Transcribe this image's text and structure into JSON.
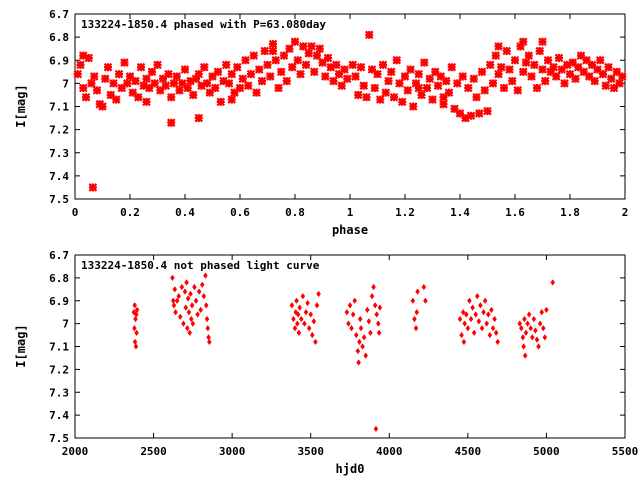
{
  "chart_data": [
    {
      "type": "scatter",
      "title": "133224-1850.4 phased with P=63.080day",
      "xlabel": "phase",
      "ylabel": "I[mag]",
      "xlim": [
        0,
        2
      ],
      "ylim": [
        7.5,
        6.7
      ],
      "y_inverted": true,
      "x_ticks": [
        "0",
        "0.2",
        "0.4",
        "0.6",
        "0.8",
        "1",
        "1.2",
        "1.4",
        "1.6",
        "1.8",
        "2"
      ],
      "y_ticks": [
        "6.7",
        "6.8",
        "6.9",
        "7",
        "7.1",
        "7.2",
        "7.3",
        "7.4",
        "7.5"
      ],
      "grid": false,
      "marker_color": "#ff0000",
      "points": [
        [
          0.01,
          6.96
        ],
        [
          0.02,
          6.92
        ],
        [
          0.03,
          7.02
        ],
        [
          0.04,
          7.06
        ],
        [
          0.05,
          6.89
        ],
        [
          0.06,
          7.0
        ],
        [
          0.07,
          6.97
        ],
        [
          0.08,
          7.03
        ],
        [
          0.09,
          7.09
        ],
        [
          0.1,
          7.1
        ],
        [
          0.11,
          6.98
        ],
        [
          0.12,
          6.93
        ],
        [
          0.13,
          7.05
        ],
        [
          0.14,
          7.0
        ],
        [
          0.15,
          7.07
        ],
        [
          0.16,
          6.96
        ],
        [
          0.17,
          7.02
        ],
        [
          0.18,
          6.91
        ],
        [
          0.19,
          7.0
        ],
        [
          0.2,
          6.97
        ],
        [
          0.21,
          7.04
        ],
        [
          0.22,
          6.99
        ],
        [
          0.23,
          7.06
        ],
        [
          0.24,
          6.93
        ],
        [
          0.25,
          7.01
        ],
        [
          0.26,
          6.98
        ],
        [
          0.27,
          7.02
        ],
        [
          0.28,
          6.95
        ],
        [
          0.29,
          7.0
        ],
        [
          0.3,
          6.92
        ],
        [
          0.31,
          7.03
        ],
        [
          0.32,
          6.98
        ],
        [
          0.33,
          7.01
        ],
        [
          0.34,
          6.96
        ],
        [
          0.35,
          7.06
        ],
        [
          0.36,
          7.0
        ],
        [
          0.37,
          6.97
        ],
        [
          0.38,
          7.03
        ],
        [
          0.39,
          7.0
        ],
        [
          0.4,
          6.94
        ],
        [
          0.41,
          7.02
        ],
        [
          0.42,
          6.99
        ],
        [
          0.43,
          7.05
        ],
        [
          0.44,
          6.98
        ],
        [
          0.45,
          6.96
        ],
        [
          0.46,
          7.01
        ],
        [
          0.47,
          6.93
        ],
        [
          0.48,
          7.0
        ],
        [
          0.49,
          7.04
        ],
        [
          0.5,
          6.97
        ],
        [
          0.51,
          7.02
        ],
        [
          0.52,
          6.95
        ],
        [
          0.53,
          7.08
        ],
        [
          0.54,
          6.99
        ],
        [
          0.55,
          6.92
        ],
        [
          0.56,
          7.0
        ],
        [
          0.57,
          6.96
        ],
        [
          0.58,
          7.04
        ],
        [
          0.59,
          6.93
        ],
        [
          0.6,
          7.02
        ],
        [
          0.61,
          6.98
        ],
        [
          0.62,
          6.9
        ],
        [
          0.63,
          7.01
        ],
        [
          0.64,
          6.96
        ],
        [
          0.65,
          6.88
        ],
        [
          0.66,
          7.04
        ],
        [
          0.67,
          6.94
        ],
        [
          0.68,
          6.99
        ],
        [
          0.69,
          6.86
        ],
        [
          0.7,
          6.92
        ],
        [
          0.71,
          6.97
        ],
        [
          0.72,
          6.83
        ],
        [
          0.73,
          6.9
        ],
        [
          0.74,
          7.02
        ],
        [
          0.75,
          6.95
        ],
        [
          0.76,
          6.88
        ],
        [
          0.77,
          6.99
        ],
        [
          0.78,
          6.85
        ],
        [
          0.79,
          6.93
        ],
        [
          0.8,
          6.82
        ],
        [
          0.81,
          6.9
        ],
        [
          0.82,
          6.96
        ],
        [
          0.83,
          6.84
        ],
        [
          0.84,
          6.92
        ],
        [
          0.85,
          6.87
        ],
        [
          0.86,
          6.84
        ],
        [
          0.87,
          6.95
        ],
        [
          0.88,
          6.88
        ],
        [
          0.89,
          6.85
        ],
        [
          0.9,
          6.91
        ],
        [
          0.91,
          6.97
        ],
        [
          0.92,
          6.89
        ],
        [
          0.93,
          6.93
        ],
        [
          0.94,
          6.99
        ],
        [
          0.95,
          6.92
        ],
        [
          0.96,
          6.96
        ],
        [
          0.97,
          7.01
        ],
        [
          0.98,
          6.94
        ],
        [
          0.99,
          6.98
        ],
        [
          1.01,
          6.92
        ],
        [
          1.02,
          6.97
        ],
        [
          1.03,
          7.05
        ],
        [
          1.04,
          6.93
        ],
        [
          1.05,
          7.01
        ],
        [
          1.06,
          7.06
        ],
        [
          1.07,
          6.79
        ],
        [
          1.08,
          6.94
        ],
        [
          1.09,
          7.02
        ],
        [
          1.1,
          6.96
        ],
        [
          1.11,
          7.07
        ],
        [
          1.12,
          6.92
        ],
        [
          1.13,
          7.04
        ],
        [
          1.14,
          6.99
        ],
        [
          1.15,
          6.95
        ],
        [
          1.16,
          7.06
        ],
        [
          1.17,
          6.9
        ],
        [
          1.18,
          7.0
        ],
        [
          1.19,
          7.08
        ],
        [
          1.2,
          6.97
        ],
        [
          1.21,
          7.03
        ],
        [
          1.22,
          6.94
        ],
        [
          1.23,
          7.1
        ],
        [
          1.24,
          7.0
        ],
        [
          1.25,
          6.96
        ],
        [
          1.26,
          7.05
        ],
        [
          1.27,
          6.91
        ],
        [
          1.28,
          7.02
        ],
        [
          1.29,
          6.98
        ],
        [
          1.3,
          7.07
        ],
        [
          1.31,
          6.95
        ],
        [
          1.32,
          7.01
        ],
        [
          1.33,
          6.97
        ],
        [
          1.34,
          7.09
        ],
        [
          1.35,
          6.99
        ],
        [
          1.36,
          7.04
        ],
        [
          1.37,
          6.93
        ],
        [
          1.38,
          7.11
        ],
        [
          1.39,
          7.0
        ],
        [
          1.4,
          7.13
        ],
        [
          1.41,
          6.97
        ],
        [
          1.42,
          7.15
        ],
        [
          1.43,
          7.02
        ],
        [
          1.44,
          7.14
        ],
        [
          1.45,
          6.98
        ],
        [
          1.46,
          7.06
        ],
        [
          1.47,
          7.13
        ],
        [
          1.48,
          6.95
        ],
        [
          1.49,
          7.03
        ],
        [
          1.5,
          7.12
        ],
        [
          1.51,
          6.92
        ],
        [
          1.52,
          7.0
        ],
        [
          1.53,
          6.88
        ],
        [
          1.54,
          6.96
        ],
        [
          1.55,
          6.93
        ],
        [
          1.56,
          7.02
        ],
        [
          1.57,
          6.86
        ],
        [
          1.58,
          6.94
        ],
        [
          1.59,
          6.99
        ],
        [
          1.6,
          6.9
        ],
        [
          1.61,
          7.03
        ],
        [
          1.62,
          6.84
        ],
        [
          1.63,
          6.95
        ],
        [
          1.64,
          6.91
        ],
        [
          1.65,
          6.88
        ],
        [
          1.66,
          6.97
        ],
        [
          1.67,
          6.92
        ],
        [
          1.68,
          7.02
        ],
        [
          1.69,
          6.86
        ],
        [
          1.7,
          6.94
        ],
        [
          1.71,
          6.99
        ],
        [
          1.72,
          6.9
        ],
        [
          1.73,
          6.95
        ],
        [
          1.74,
          6.93
        ],
        [
          1.75,
          6.97
        ],
        [
          1.76,
          6.89
        ],
        [
          1.77,
          6.94
        ],
        [
          1.78,
          7.0
        ],
        [
          1.79,
          6.92
        ],
        [
          1.8,
          6.96
        ],
        [
          1.81,
          6.91
        ],
        [
          1.82,
          6.98
        ],
        [
          1.83,
          6.93
        ],
        [
          1.84,
          6.88
        ],
        [
          1.85,
          6.95
        ],
        [
          1.86,
          6.9
        ],
        [
          1.87,
          6.97
        ],
        [
          1.88,
          6.92
        ],
        [
          1.89,
          6.99
        ],
        [
          1.9,
          6.94
        ],
        [
          1.91,
          6.9
        ],
        [
          1.92,
          6.96
        ],
        [
          1.93,
          7.01
        ],
        [
          1.94,
          6.93
        ],
        [
          1.95,
          6.98
        ],
        [
          1.96,
          7.02
        ],
        [
          1.97,
          6.95
        ],
        [
          1.98,
          7.0
        ],
        [
          1.99,
          6.97
        ],
        [
          0.065,
          7.45
        ],
        [
          0.35,
          7.17
        ],
        [
          0.45,
          7.15
        ],
        [
          0.03,
          6.88
        ],
        [
          0.72,
          6.86
        ],
        [
          1.63,
          6.82
        ],
        [
          1.7,
          6.82
        ],
        [
          1.54,
          6.84
        ],
        [
          1.34,
          7.06
        ],
        [
          0.26,
          7.08
        ],
        [
          1.25,
          7.02
        ],
        [
          0.57,
          7.07
        ]
      ]
    },
    {
      "type": "scatter",
      "title": "133224-1850.4 not phased light curve",
      "xlabel": "hjd0",
      "ylabel": "I[mag]",
      "xlim": [
        2000,
        5500
      ],
      "ylim": [
        7.5,
        6.7
      ],
      "y_inverted": true,
      "x_ticks": [
        "2000",
        "2500",
        "3000",
        "3500",
        "4000",
        "4500",
        "5000",
        "5500"
      ],
      "y_ticks": [
        "6.7",
        "6.8",
        "6.9",
        "7",
        "7.1",
        "7.2",
        "7.3",
        "7.4",
        "7.5"
      ],
      "grid": false,
      "marker_color": "#ff0000",
      "points": [
        [
          2375,
          6.95
        ],
        [
          2378,
          7.02
        ],
        [
          2380,
          6.92
        ],
        [
          2382,
          7.08
        ],
        [
          2385,
          6.98
        ],
        [
          2388,
          7.1
        ],
        [
          2390,
          6.96
        ],
        [
          2392,
          7.04
        ],
        [
          2395,
          6.94
        ],
        [
          2620,
          6.8
        ],
        [
          2625,
          6.9
        ],
        [
          2630,
          6.92
        ],
        [
          2635,
          6.85
        ],
        [
          2640,
          6.95
        ],
        [
          2650,
          6.9
        ],
        [
          2660,
          6.88
        ],
        [
          2670,
          6.97
        ],
        [
          2680,
          6.84
        ],
        [
          2690,
          7.0
        ],
        [
          2700,
          6.86
        ],
        [
          2705,
          6.93
        ],
        [
          2710,
          6.82
        ],
        [
          2715,
          7.02
        ],
        [
          2720,
          6.89
        ],
        [
          2725,
          6.95
        ],
        [
          2730,
          7.04
        ],
        [
          2735,
          6.87
        ],
        [
          2740,
          6.98
        ],
        [
          2745,
          6.92
        ],
        [
          2750,
          7.0
        ],
        [
          2760,
          6.84
        ],
        [
          2770,
          6.9
        ],
        [
          2780,
          6.96
        ],
        [
          2790,
          6.86
        ],
        [
          2800,
          6.94
        ],
        [
          2810,
          6.83
        ],
        [
          2820,
          6.88
        ],
        [
          2830,
          6.79
        ],
        [
          2835,
          6.92
        ],
        [
          2840,
          6.98
        ],
        [
          2845,
          7.02
        ],
        [
          2850,
          7.06
        ],
        [
          2855,
          7.08
        ],
        [
          3380,
          6.92
        ],
        [
          3390,
          6.98
        ],
        [
          3400,
          7.02
        ],
        [
          3405,
          6.95
        ],
        [
          3410,
          6.9
        ],
        [
          3415,
          7.0
        ],
        [
          3420,
          6.96
        ],
        [
          3425,
          7.04
        ],
        [
          3430,
          6.93
        ],
        [
          3440,
          6.98
        ],
        [
          3450,
          6.88
        ],
        [
          3460,
          7.0
        ],
        [
          3470,
          6.95
        ],
        [
          3480,
          6.91
        ],
        [
          3490,
          7.02
        ],
        [
          3500,
          6.96
        ],
        [
          3510,
          7.05
        ],
        [
          3520,
          6.99
        ],
        [
          3530,
          7.08
        ],
        [
          3540,
          6.92
        ],
        [
          3550,
          6.87
        ],
        [
          3730,
          6.95
        ],
        [
          3740,
          7.0
        ],
        [
          3750,
          6.92
        ],
        [
          3760,
          7.02
        ],
        [
          3770,
          6.96
        ],
        [
          3780,
          6.9
        ],
        [
          3790,
          7.05
        ],
        [
          3800,
          7.12
        ],
        [
          3805,
          7.17
        ],
        [
          3810,
          7.08
        ],
        [
          3815,
          6.98
        ],
        [
          3820,
          7.02
        ],
        [
          3830,
          7.1
        ],
        [
          3840,
          7.06
        ],
        [
          3850,
          7.14
        ],
        [
          3860,
          6.94
        ],
        [
          3870,
          6.99
        ],
        [
          3880,
          7.04
        ],
        [
          3890,
          6.88
        ],
        [
          3900,
          6.84
        ],
        [
          3910,
          6.92
        ],
        [
          3915,
          7.46
        ],
        [
          3920,
          6.96
        ],
        [
          3930,
          7.0
        ],
        [
          3935,
          7.04
        ],
        [
          3940,
          6.93
        ],
        [
          4150,
          6.9
        ],
        [
          4160,
          6.98
        ],
        [
          4170,
          7.02
        ],
        [
          4175,
          6.95
        ],
        [
          4180,
          6.86
        ],
        [
          4220,
          6.84
        ],
        [
          4230,
          6.9
        ],
        [
          4450,
          6.98
        ],
        [
          4460,
          7.05
        ],
        [
          4470,
          6.95
        ],
        [
          4475,
          7.08
        ],
        [
          4480,
          7.0
        ],
        [
          4490,
          6.96
        ],
        [
          4500,
          7.02
        ],
        [
          4510,
          6.9
        ],
        [
          4520,
          6.98
        ],
        [
          4530,
          6.93
        ],
        [
          4540,
          7.04
        ],
        [
          4550,
          6.96
        ],
        [
          4560,
          6.88
        ],
        [
          4570,
          6.99
        ],
        [
          4580,
          6.92
        ],
        [
          4590,
          7.02
        ],
        [
          4600,
          6.95
        ],
        [
          4610,
          6.9
        ],
        [
          4620,
          7.0
        ],
        [
          4630,
          6.96
        ],
        [
          4640,
          7.05
        ],
        [
          4650,
          6.94
        ],
        [
          4660,
          7.02
        ],
        [
          4670,
          6.98
        ],
        [
          4680,
          7.04
        ],
        [
          4690,
          7.08
        ],
        [
          4830,
          7.0
        ],
        [
          4840,
          7.02
        ],
        [
          4850,
          7.06
        ],
        [
          4855,
          7.1
        ],
        [
          4860,
          6.98
        ],
        [
          4865,
          7.14
        ],
        [
          4870,
          7.04
        ],
        [
          4880,
          7.0
        ],
        [
          4890,
          6.96
        ],
        [
          4900,
          7.02
        ],
        [
          4910,
          7.06
        ],
        [
          4920,
          6.98
        ],
        [
          4930,
          7.03
        ],
        [
          4940,
          7.07
        ],
        [
          4950,
          7.1
        ],
        [
          4960,
          7.0
        ],
        [
          4970,
          6.95
        ],
        [
          4980,
          7.02
        ],
        [
          4990,
          7.06
        ],
        [
          5000,
          6.94
        ],
        [
          5040,
          6.82
        ]
      ]
    }
  ]
}
